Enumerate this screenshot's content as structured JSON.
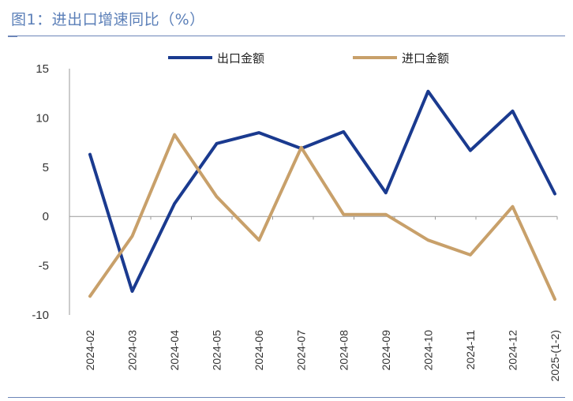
{
  "title": "图1：进出口增速同比（%）",
  "colors": {
    "export": "#1a3a8f",
    "import": "#c8a06a",
    "axis": "#999999",
    "rule": "#6c86b8"
  },
  "chart_data": {
    "type": "line",
    "categories": [
      "2024-02",
      "2024-03",
      "2024-04",
      "2024-05",
      "2024-06",
      "2024-07",
      "2024-08",
      "2024-09",
      "2024-10",
      "2024-11",
      "2024-12",
      "2025-(1-2)"
    ],
    "series": [
      {
        "name": "出口金额",
        "color": "#1a3a8f",
        "values": [
          6.3,
          -7.6,
          1.3,
          7.4,
          8.5,
          6.9,
          8.6,
          2.4,
          12.7,
          6.7,
          10.7,
          2.3
        ]
      },
      {
        "name": "进口金额",
        "color": "#c8a06a",
        "values": [
          -8.1,
          -2.0,
          8.3,
          2.0,
          -2.4,
          7.0,
          0.2,
          0.2,
          -2.4,
          -3.9,
          1.0,
          -8.4
        ]
      }
    ],
    "yticks": [
      15,
      10,
      5,
      0,
      -5,
      -10
    ],
    "ylim": [
      -10,
      15
    ],
    "legend": "top",
    "grid": false
  }
}
